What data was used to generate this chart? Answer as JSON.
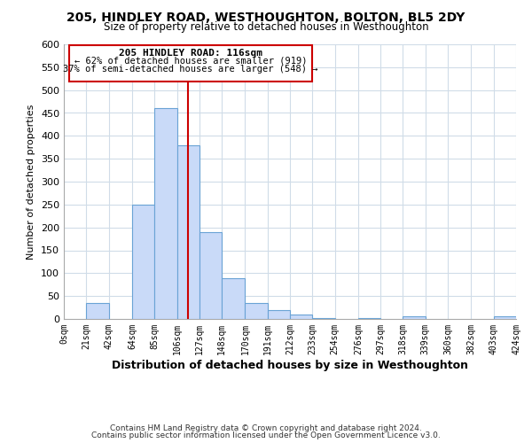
{
  "title": "205, HINDLEY ROAD, WESTHOUGHTON, BOLTON, BL5 2DY",
  "subtitle": "Size of property relative to detached houses in Westhoughton",
  "xlabel": "Distribution of detached houses by size in Westhoughton",
  "ylabel": "Number of detached properties",
  "footer1": "Contains HM Land Registry data © Crown copyright and database right 2024.",
  "footer2": "Contains public sector information licensed under the Open Government Licence v3.0.",
  "bin_edges": [
    0,
    21,
    42,
    64,
    85,
    106,
    127,
    148,
    170,
    191,
    212,
    233,
    254,
    276,
    297,
    318,
    339,
    360,
    382,
    403,
    424
  ],
  "bin_labels": [
    "0sqm",
    "21sqm",
    "42sqm",
    "64sqm",
    "85sqm",
    "106sqm",
    "127sqm",
    "148sqm",
    "170sqm",
    "191sqm",
    "212sqm",
    "233sqm",
    "254sqm",
    "276sqm",
    "297sqm",
    "318sqm",
    "339sqm",
    "360sqm",
    "382sqm",
    "403sqm",
    "424sqm"
  ],
  "bar_heights": [
    0,
    35,
    0,
    250,
    460,
    380,
    190,
    90,
    35,
    20,
    10,
    2,
    0,
    2,
    0,
    5,
    0,
    0,
    0,
    5
  ],
  "bar_color": "#c9daf8",
  "bar_edge_color": "#6aa3d5",
  "vline_x": 116,
  "vline_color": "#cc0000",
  "ylim": [
    0,
    600
  ],
  "annotation_title": "205 HINDLEY ROAD: 116sqm",
  "annotation_line1": "← 62% of detached houses are smaller (919)",
  "annotation_line2": "37% of semi-detached houses are larger (548) →",
  "annotation_box_color": "#cc0000",
  "background_color": "#ffffff",
  "grid_color": "#d0dce8"
}
